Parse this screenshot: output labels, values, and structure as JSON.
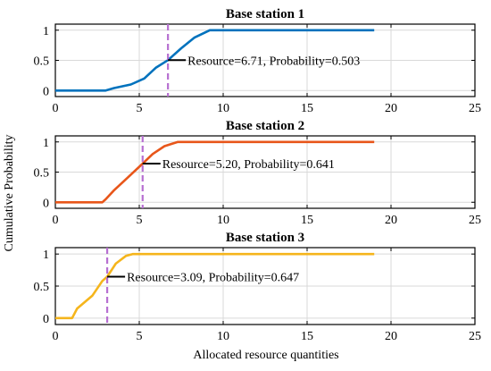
{
  "chart_data": {
    "type": "line",
    "ylabel": "Cumulative Probability",
    "xlabel": "Allocated resource quantities",
    "xlim": [
      0,
      25
    ],
    "ylim": [
      -0.1,
      1.1
    ],
    "xticks": [
      0,
      5,
      10,
      15,
      20,
      25
    ],
    "yticks": [
      0,
      0.5,
      1
    ],
    "grid": true,
    "panels": [
      {
        "title": "Base station 1",
        "color": "#0072bd",
        "x": [
          0,
          3,
          3.5,
          4.5,
          5.3,
          6.0,
          6.71,
          7.5,
          8.3,
          9.2,
          19
        ],
        "y": [
          0,
          0,
          0.04,
          0.1,
          0.2,
          0.38,
          0.503,
          0.7,
          0.88,
          1,
          1
        ],
        "marker_x": 6.71,
        "annotation": "Resource=6.71, Probability=0.503"
      },
      {
        "title": "Base station 2",
        "color": "#e8561a",
        "x": [
          0,
          2.8,
          3.0,
          3.5,
          4.2,
          5.2,
          5.8,
          6.5,
          7.3,
          19
        ],
        "y": [
          0,
          0,
          0.05,
          0.2,
          0.38,
          0.641,
          0.8,
          0.93,
          1,
          1
        ],
        "marker_x": 5.2,
        "annotation": "Resource=5.20, Probability=0.641"
      },
      {
        "title": "Base station 3",
        "color": "#f5b51c",
        "x": [
          0,
          1.0,
          1.3,
          2.2,
          2.8,
          3.09,
          3.6,
          4.2,
          4.6,
          19
        ],
        "y": [
          0,
          0,
          0.15,
          0.35,
          0.58,
          0.647,
          0.85,
          0.97,
          1,
          1
        ],
        "marker_x": 3.09,
        "annotation": "Resource=3.09, Probability=0.647"
      }
    ]
  }
}
